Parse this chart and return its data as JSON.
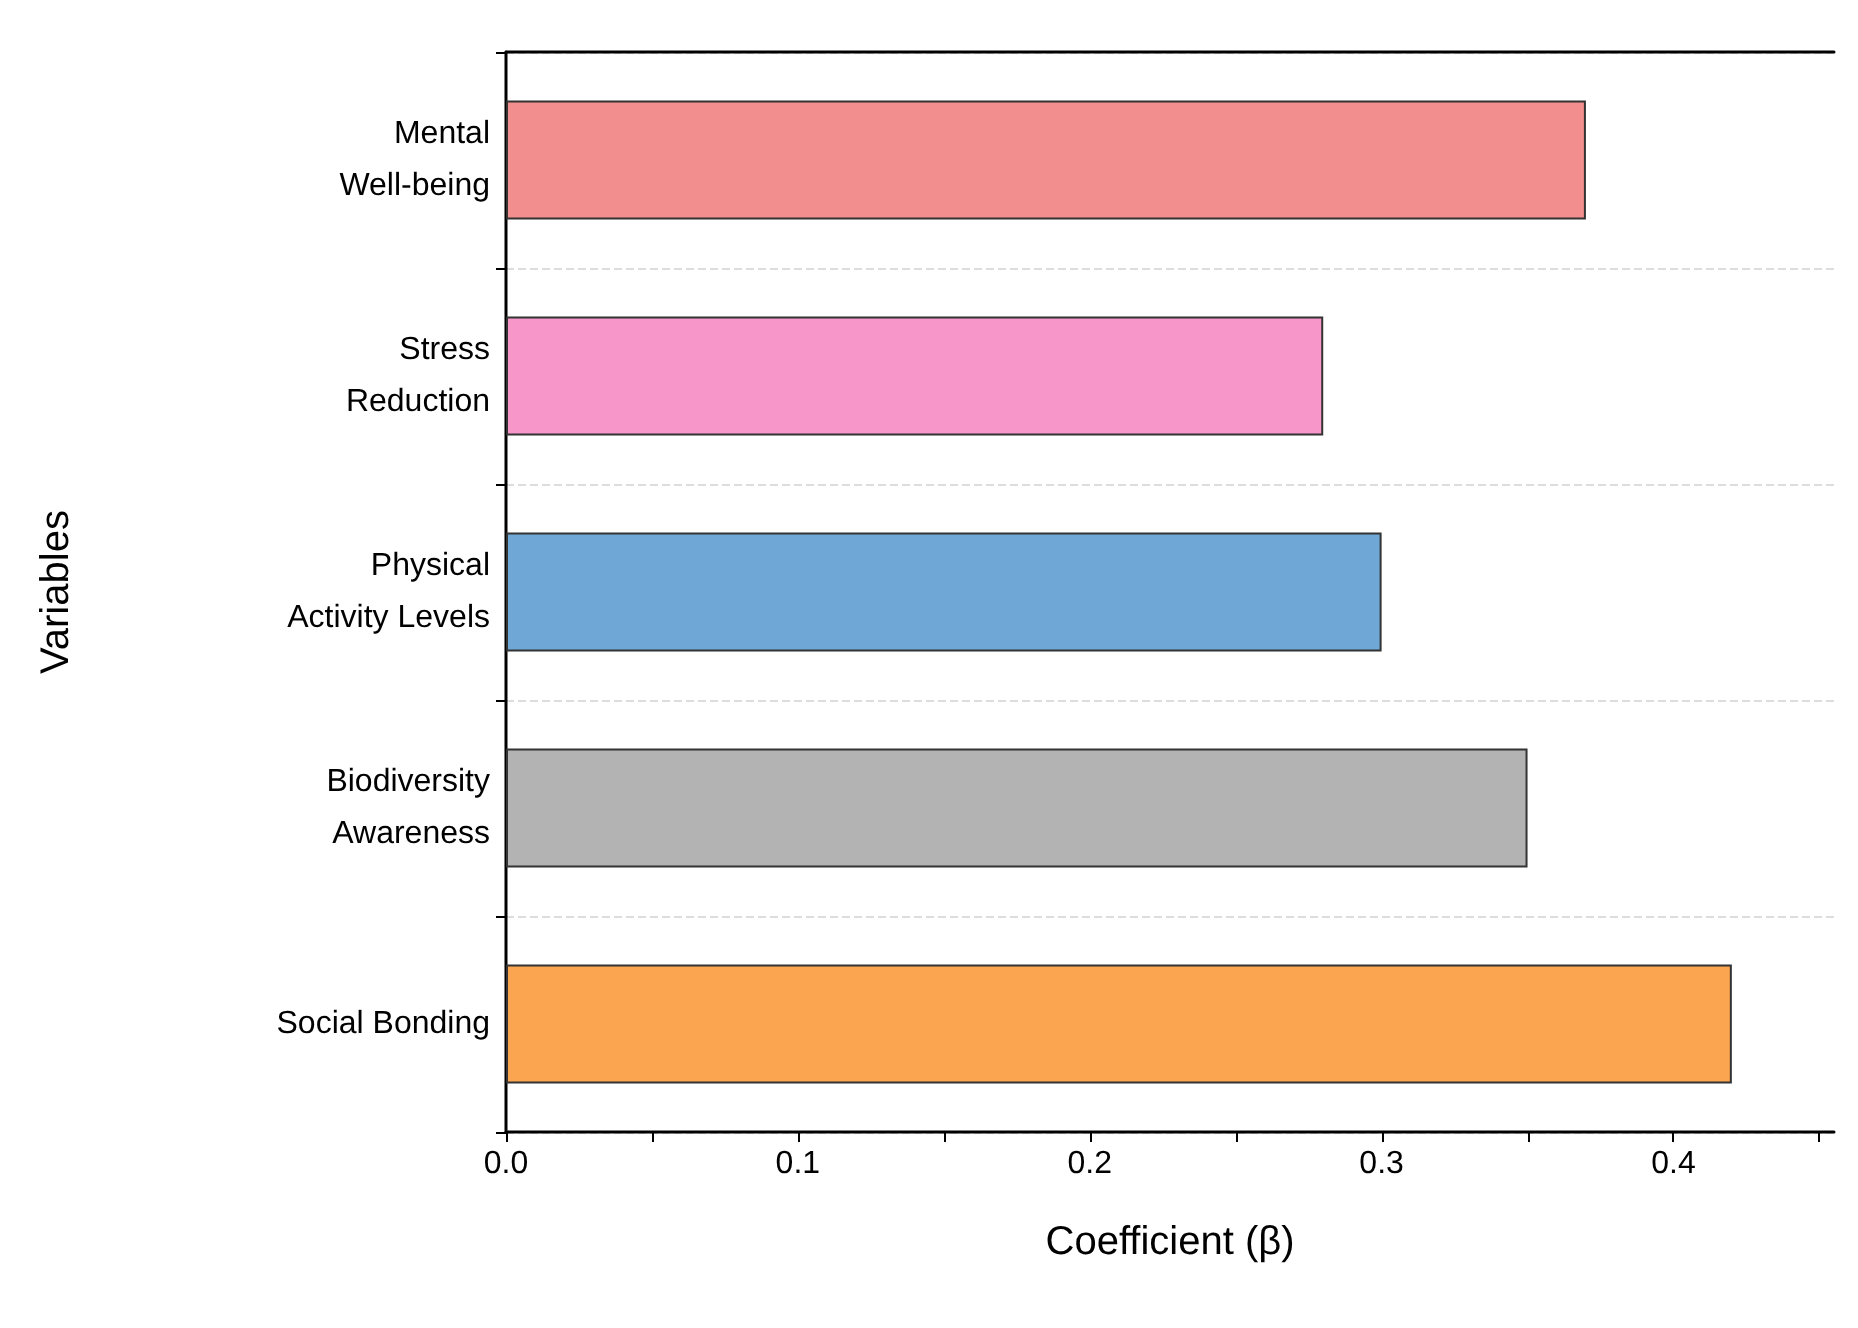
{
  "chart_data": {
    "type": "bar",
    "orientation": "horizontal",
    "xlabel": "Coefficient (β)",
    "ylabel": "Variables",
    "categories": [
      "Mental\nWell-being",
      "Stress\nReduction",
      "Physical\nActivity Levels",
      "Biodiversity\nAwareness",
      "Social Bonding"
    ],
    "values": [
      0.37,
      0.28,
      0.3,
      0.35,
      0.42
    ],
    "colors": [
      "#f28e8e",
      "#f797c9",
      "#6fa8d6",
      "#b3b3b3",
      "#fba550"
    ],
    "xlim": [
      0,
      0.455
    ],
    "xticks": [
      {
        "value": 0,
        "label": "0.0"
      },
      {
        "value": 0.05,
        "label": null
      },
      0.1,
      {
        "value": 0.15,
        "label": null
      },
      0.2,
      {
        "value": 0.25,
        "label": null
      },
      0.3,
      {
        "value": 0.35,
        "label": null
      },
      0.4,
      {
        "value": 0.45,
        "label": null
      }
    ],
    "grid": "y"
  }
}
